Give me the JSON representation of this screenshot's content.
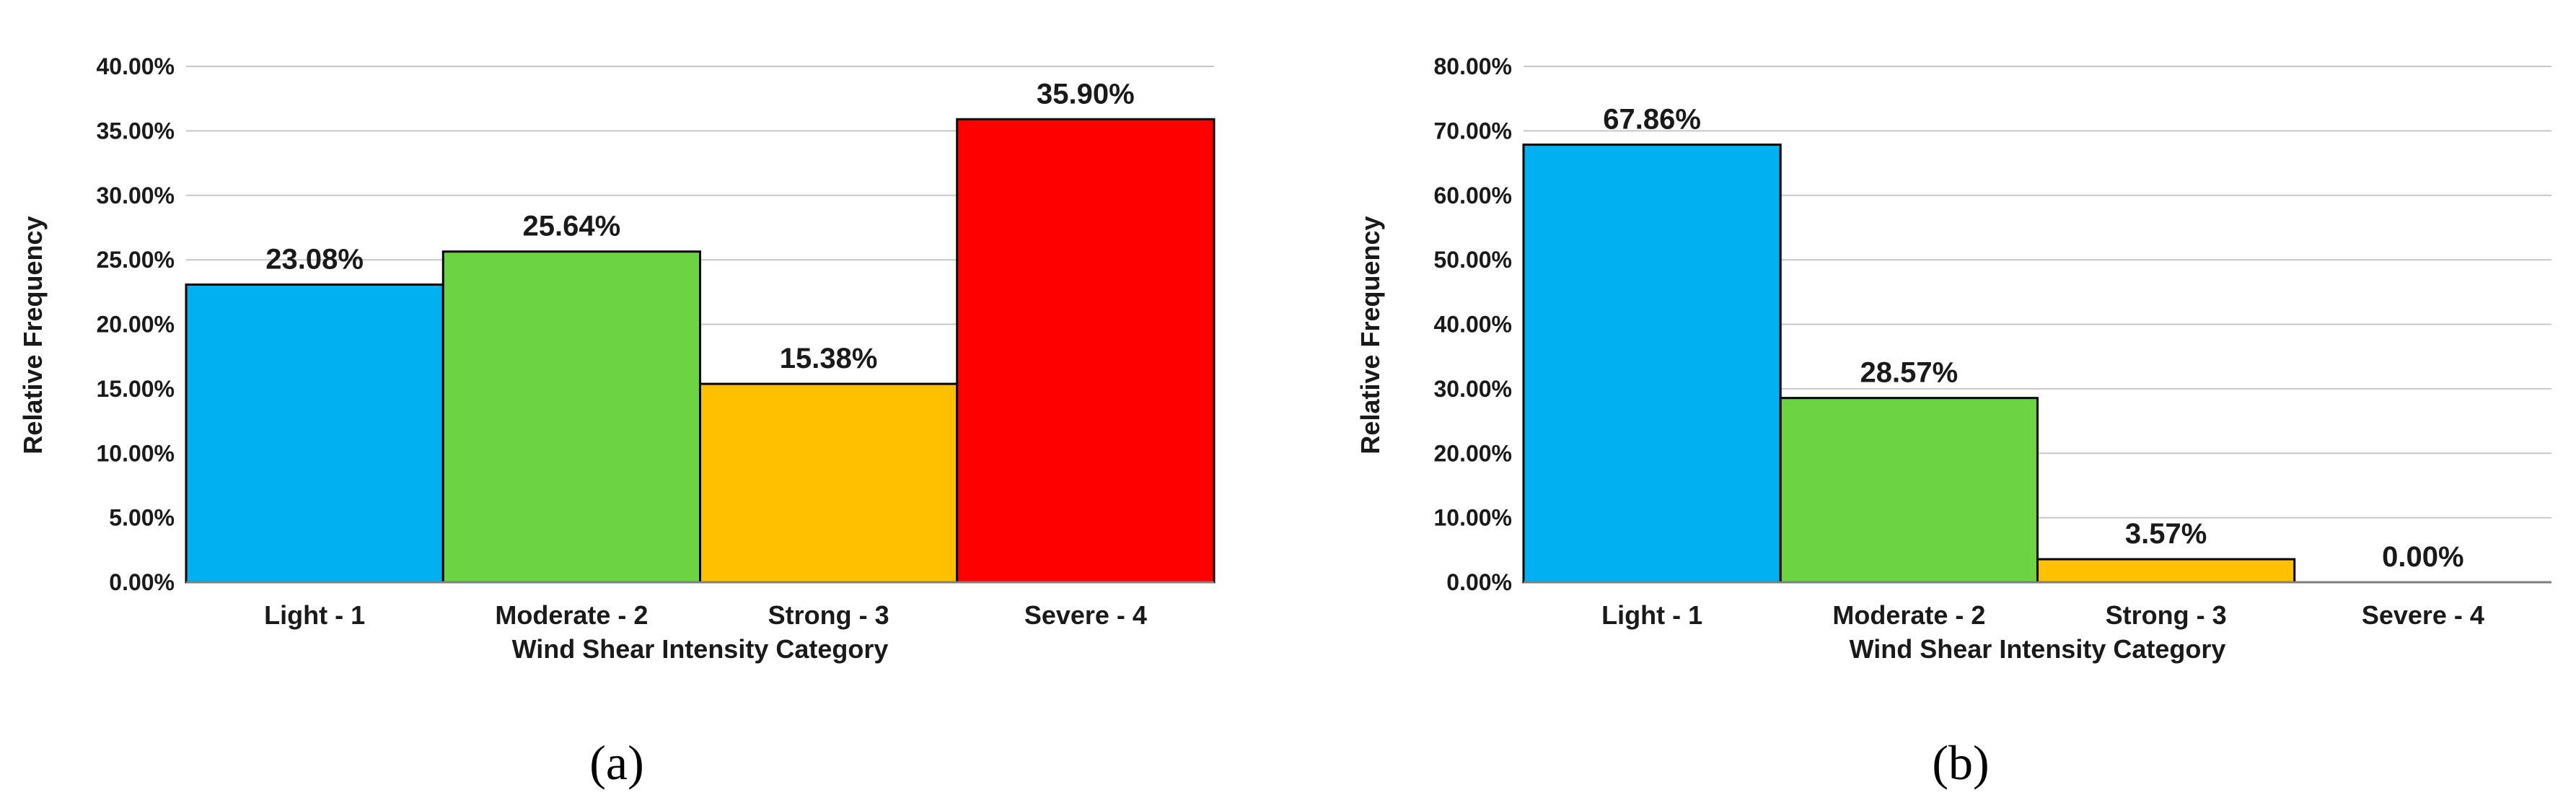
{
  "colors": {
    "light": "#00B0F0",
    "moderate": "#6CD443",
    "strong": "#FFC000",
    "severe": "#FF0000"
  },
  "chart_data": [
    {
      "type": "bar",
      "panel_label": "(a)",
      "categories": [
        "Light - 1",
        "Moderate - 2",
        "Strong - 3",
        "Severe - 4"
      ],
      "values": [
        23.08,
        25.64,
        15.38,
        35.9
      ],
      "data_labels": [
        "23.08%",
        "25.64%",
        "15.38%",
        "35.90%"
      ],
      "xlabel": "Wind Shear Intensity Category",
      "ylabel": "Relative Frequency",
      "ylim": [
        0,
        40
      ],
      "yticks": [
        0,
        5,
        10,
        15,
        20,
        25,
        30,
        35,
        40
      ],
      "ytick_labels": [
        "0.00%",
        "5.00%",
        "10.00%",
        "15.00%",
        "20.00%",
        "25.00%",
        "30.00%",
        "35.00%",
        "40.00%"
      ],
      "grid": true,
      "legend": "none"
    },
    {
      "type": "bar",
      "panel_label": "(b)",
      "categories": [
        "Light - 1",
        "Moderate - 2",
        "Strong - 3",
        "Severe - 4"
      ],
      "values": [
        67.86,
        28.57,
        3.57,
        0.0
      ],
      "data_labels": [
        "67.86%",
        "28.57%",
        "3.57%",
        "0.00%"
      ],
      "xlabel": "Wind Shear Intensity Category",
      "ylabel": "Relative Frequency",
      "ylim": [
        0,
        80
      ],
      "yticks": [
        0,
        10,
        20,
        30,
        40,
        50,
        60,
        70,
        80
      ],
      "ytick_labels": [
        "0.00%",
        "10.00%",
        "20.00%",
        "30.00%",
        "40.00%",
        "50.00%",
        "60.00%",
        "70.00%",
        "80.00%"
      ],
      "grid": true,
      "legend": "none"
    }
  ]
}
